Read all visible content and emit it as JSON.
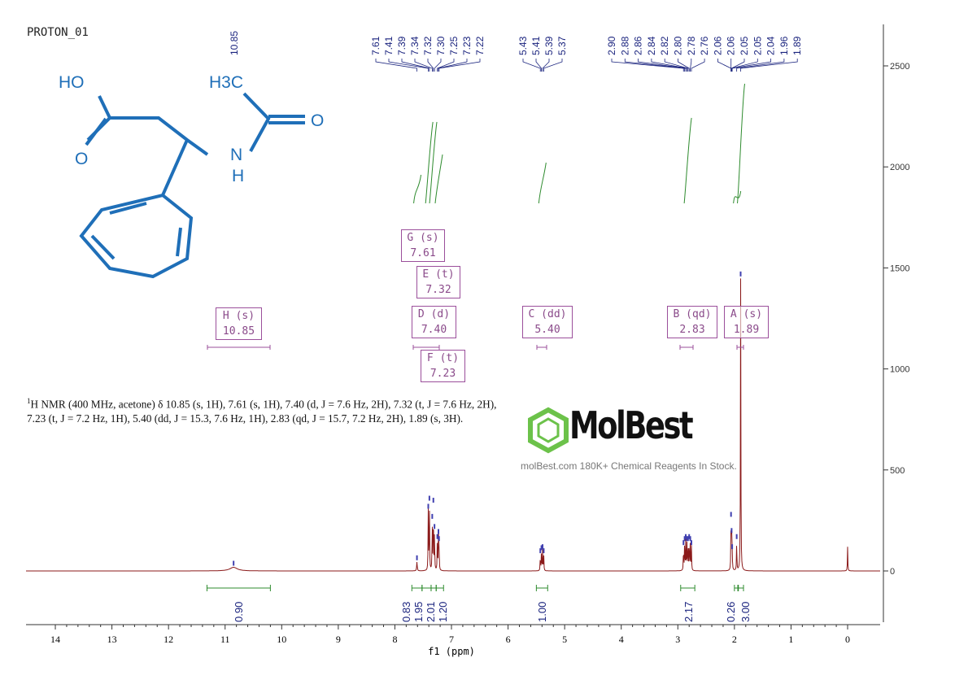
{
  "chart_data": {
    "type": "line",
    "title": "PROTON_01",
    "xlabel": "f1 (ppm)",
    "xlim": [
      14.5,
      -0.55
    ],
    "ylim": [
      -200,
      2700
    ],
    "x_ticks": [
      14,
      13,
      12,
      11,
      10,
      9,
      8,
      7,
      6,
      5,
      4,
      3,
      2,
      1,
      0
    ],
    "y_ticks": [
      0,
      500,
      1000,
      1500,
      2000,
      2500
    ],
    "spectrum_color": "#8b1a1a",
    "peak_label_color": "#1a237e",
    "integral_color": "#2e8b2e",
    "peak_labels": [
      [
        "10.85"
      ],
      [
        "7.61",
        "7.41",
        "7.39",
        "7.34",
        "7.32",
        "7.30",
        "7.25",
        "7.23",
        "7.22"
      ],
      [
        "5.43",
        "5.41",
        "5.39",
        "5.37"
      ],
      [
        "2.90",
        "2.88",
        "2.86",
        "2.84",
        "2.82",
        "2.80",
        "2.78",
        "2.76",
        "2.06",
        "2.06",
        "2.05",
        "2.05",
        "2.04",
        "1.96",
        "1.89"
      ]
    ],
    "peaks": [
      [
        10.85,
        18,
        0.08
      ],
      [
        7.61,
        45,
        0.006
      ],
      [
        7.41,
        300,
        0.004
      ],
      [
        7.39,
        340,
        0.004
      ],
      [
        7.34,
        250,
        0.004
      ],
      [
        7.32,
        330,
        0.004
      ],
      [
        7.3,
        200,
        0.004
      ],
      [
        7.25,
        150,
        0.004
      ],
      [
        7.23,
        175,
        0.004
      ],
      [
        7.22,
        140,
        0.004
      ],
      [
        5.43,
        80,
        0.004
      ],
      [
        5.41,
        95,
        0.004
      ],
      [
        5.39,
        100,
        0.004
      ],
      [
        5.37,
        80,
        0.004
      ],
      [
        2.9,
        120,
        0.004
      ],
      [
        2.88,
        140,
        0.004
      ],
      [
        2.86,
        150,
        0.004
      ],
      [
        2.84,
        140,
        0.004
      ],
      [
        2.82,
        140,
        0.004
      ],
      [
        2.8,
        150,
        0.004
      ],
      [
        2.78,
        140,
        0.004
      ],
      [
        2.76,
        120,
        0.004
      ],
      [
        2.06,
        260,
        0.004
      ],
      [
        2.05,
        180,
        0.004
      ],
      [
        2.04,
        100,
        0.004
      ],
      [
        1.96,
        150,
        0.004
      ],
      [
        1.89,
        1450,
        0.004
      ],
      [
        0.0,
        120,
        0.004
      ]
    ],
    "integrals": [
      {
        "from": 11.32,
        "to": 10.2,
        "value": "0.90"
      },
      {
        "from": 7.7,
        "to": 7.52,
        "value": "0.83"
      },
      {
        "from": 7.52,
        "to": 7.36,
        "value": "1.95"
      },
      {
        "from": 7.36,
        "to": 7.27,
        "value": "2.01"
      },
      {
        "from": 7.27,
        "to": 7.14,
        "value": "1.20"
      },
      {
        "from": 5.5,
        "to": 5.3,
        "value": "1.00"
      },
      {
        "from": 2.95,
        "to": 2.7,
        "value": "2.17"
      },
      {
        "from": 2.0,
        "to": 1.94,
        "value": "0.26"
      },
      {
        "from": 1.93,
        "to": 1.84,
        "value": "3.00"
      }
    ],
    "multiplets": [
      {
        "label": "H (s)",
        "shift": "10.85"
      },
      {
        "label": "G (s)",
        "shift": "7.61"
      },
      {
        "label": "E (t)",
        "shift": "7.32"
      },
      {
        "label": "D (d)",
        "shift": "7.40"
      },
      {
        "label": "F (t)",
        "shift": "7.23"
      },
      {
        "label": "C (dd)",
        "shift": "5.40"
      },
      {
        "label": "B (qd)",
        "shift": "2.83"
      },
      {
        "label": "A (s)",
        "shift": "1.89"
      }
    ]
  },
  "description_sup": "1",
  "description": "H NMR (400 MHz, acetone) δ 10.85 (s, 1H), 7.61 (s, 1H), 7.40 (d, J = 7.6 Hz, 2H), 7.32 (t, J = 7.6 Hz, 2H), 7.23 (t, J = 7.2 Hz, 1H), 5.40 (dd, J = 15.3, 7.6 Hz, 1H), 2.83 (qd, J = 15.7, 7.2 Hz, 2H), 1.89 (s, 3H).",
  "structure": {
    "labels": [
      "HO",
      "O",
      "H3C",
      "O",
      "N",
      "H"
    ],
    "color": "#1f6fb8"
  },
  "watermark": {
    "logo": "MolBest",
    "tagline": "molBest.com 180K+ Chemical Reagents In Stock."
  }
}
